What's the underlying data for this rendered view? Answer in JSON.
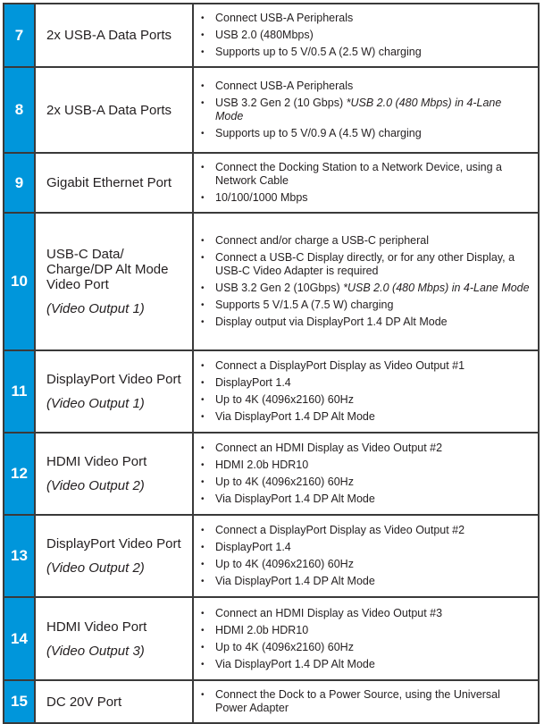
{
  "accent_color": "#0096db",
  "rows": [
    {
      "number": "7",
      "name": "2x USB-A Data Ports",
      "sub": "",
      "bullets": [
        {
          "text": "Connect USB-A Peripherals",
          "note": ""
        },
        {
          "text": "USB 2.0 (480Mbps)",
          "note": ""
        },
        {
          "text": "Supports up to 5 V/0.5 A (2.5 W) charging",
          "note": ""
        }
      ]
    },
    {
      "number": "8",
      "name": "2x USB-A Data Ports",
      "sub": "",
      "bullets": [
        {
          "text": "Connect USB-A Peripherals",
          "note": ""
        },
        {
          "text": "USB 3.2 Gen 2 (10 Gbps) ",
          "note": "*USB 2.0 (480 Mbps) in 4-Lane Mode"
        },
        {
          "text": "Supports up to 5 V/0.9 A (4.5 W) charging",
          "note": ""
        }
      ]
    },
    {
      "number": "9",
      "name": "Gigabit Ethernet Port",
      "sub": "",
      "bullets": [
        {
          "text": "Connect the Docking Station to a Network Device, using a Network Cable",
          "note": ""
        },
        {
          "text": "10/100/1000 Mbps",
          "note": ""
        }
      ]
    },
    {
      "number": "10",
      "name": "USB-C Data/ Charge/DP Alt Mode Video Port",
      "sub": "(Video Output 1)",
      "bullets": [
        {
          "text": "Connect and/or charge a USB-C peripheral",
          "note": ""
        },
        {
          "text": "Connect a USB-C Display directly, or for any other Display, a USB-C Video Adapter is required",
          "note": ""
        },
        {
          "text": "USB 3.2 Gen 2 (10Gbps) ",
          "note": "*USB 2.0 (480 Mbps) in 4-Lane Mode"
        },
        {
          "text": "Supports 5 V/1.5 A (7.5 W) charging",
          "note": ""
        },
        {
          "text": "Display output via DisplayPort 1.4 DP Alt Mode",
          "note": ""
        }
      ]
    },
    {
      "number": "11",
      "name": "DisplayPort Video Port",
      "sub": "(Video Output 1)",
      "bullets": [
        {
          "text": "Connect a DisplayPort Display as Video Output #1",
          "note": ""
        },
        {
          "text": "DisplayPort 1.4",
          "note": ""
        },
        {
          "text": "Up to 4K (4096x2160) 60Hz",
          "note": ""
        },
        {
          "text": "Via DisplayPort 1.4 DP Alt Mode",
          "note": ""
        }
      ]
    },
    {
      "number": "12",
      "name": "HDMI Video Port",
      "sub": "(Video Output 2)",
      "bullets": [
        {
          "text": "Connect an HDMI Display as Video Output #2",
          "note": ""
        },
        {
          "text": "HDMI 2.0b HDR10",
          "note": ""
        },
        {
          "text": "Up to 4K (4096x2160) 60Hz",
          "note": ""
        },
        {
          "text": "Via DisplayPort 1.4 DP Alt Mode",
          "note": ""
        }
      ]
    },
    {
      "number": "13",
      "name": "DisplayPort Video Port",
      "sub": "(Video Output 2)",
      "bullets": [
        {
          "text": "Connect a DisplayPort Display as Video Output #2",
          "note": ""
        },
        {
          "text": "DisplayPort 1.4",
          "note": ""
        },
        {
          "text": "Up to 4K (4096x2160) 60Hz",
          "note": ""
        },
        {
          "text": "Via DisplayPort 1.4 DP Alt Mode",
          "note": ""
        }
      ]
    },
    {
      "number": "14",
      "name": "HDMI Video Port",
      "sub": "(Video Output 3)",
      "bullets": [
        {
          "text": "Connect an HDMI Display as Video Output #3",
          "note": ""
        },
        {
          "text": "HDMI 2.0b HDR10",
          "note": ""
        },
        {
          "text": "Up to 4K (4096x2160) 60Hz",
          "note": ""
        },
        {
          "text": "Via DisplayPort 1.4 DP Alt Mode",
          "note": ""
        }
      ]
    },
    {
      "number": "15",
      "name": "DC 20V Port",
      "sub": "",
      "bullets": [
        {
          "text": "Connect the Dock to a Power Source, using the Universal Power Adapter",
          "note": ""
        }
      ]
    }
  ]
}
